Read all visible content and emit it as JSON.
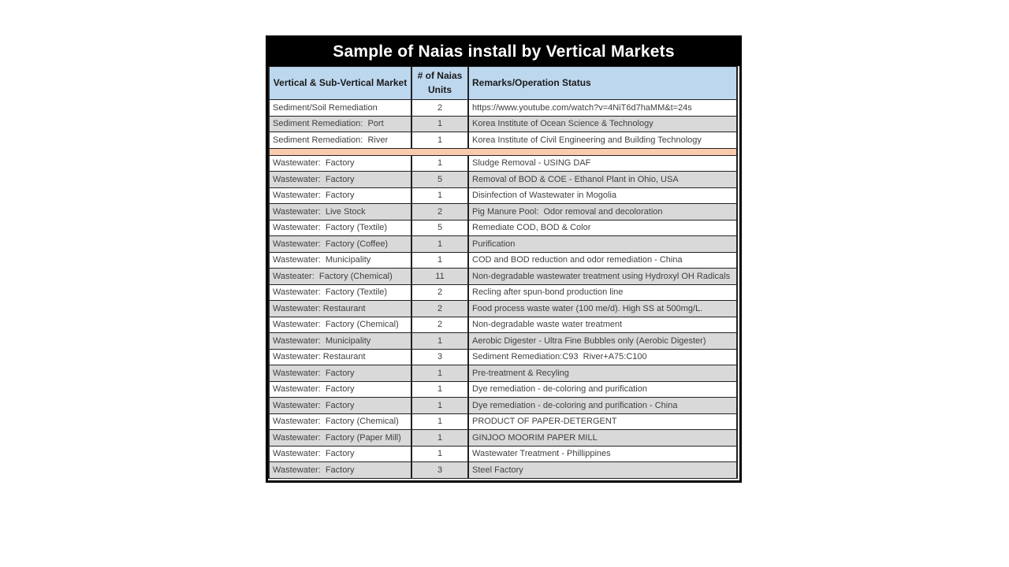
{
  "table": {
    "title": "Sample of Naias install by Vertical Markets",
    "headers": {
      "market": "Vertical & Sub-Vertical Market",
      "units": "# of Naias Units",
      "remarks": "Remarks/Operation Status"
    },
    "colors": {
      "title_bg": "#000000",
      "title_text": "#ffffff",
      "header_bg": "#bdd7ee",
      "row_bg": "#ffffff",
      "row_alt_bg": "#d9d9d9",
      "separator_bg": "#f8cbad",
      "border": "#212121",
      "text": "#3f3f3f"
    },
    "rows": [
      {
        "market": "Sediment/Soil Remediation",
        "units": "2",
        "remarks": "https://www.youtube.com/watch?v=4NiT6d7haMM&t=24s",
        "shade": "plain"
      },
      {
        "market": "Sediment Remediation:  Port",
        "units": "1",
        "remarks": "Korea Institute of Ocean Science & Technology",
        "shade": "alt"
      },
      {
        "market": "Sediment Remediation:  River",
        "units": "1",
        "remarks": "Korea Institute of Civil Engineering and Building Technology",
        "shade": "plain"
      },
      {
        "separator": true
      },
      {
        "market": "Wastewater:  Factory",
        "units": "1",
        "remarks": "Sludge Removal - USING DAF",
        "shade": "plain"
      },
      {
        "market": "Wastewater:  Factory",
        "units": "5",
        "remarks": "Removal of BOD & COE - Ethanol Plant in Ohio, USA",
        "shade": "alt"
      },
      {
        "market": "Wastewater:  Factory",
        "units": "1",
        "remarks": "Disinfection of Wastewater in Mogolia",
        "shade": "plain"
      },
      {
        "market": "Wastewater:  Live Stock",
        "units": "2",
        "remarks": "Pig Manure Pool:  Odor removal and decoloration",
        "shade": "alt"
      },
      {
        "market": "Wastewater:  Factory (Textile)",
        "units": "5",
        "remarks": "Remediate COD, BOD & Color",
        "shade": "plain"
      },
      {
        "market": "Wastewater:  Factory (Coffee)",
        "units": "1",
        "remarks": "Purification",
        "shade": "alt"
      },
      {
        "market": "Wastewater:  Municipality",
        "units": "1",
        "remarks": "COD and BOD reduction and odor remediation - China",
        "shade": "plain"
      },
      {
        "market": "Wasteater:  Factory (Chemical)",
        "units": "11",
        "remarks": "Non-degradable wastewater treatment using Hydroxyl OH Radicals",
        "shade": "alt"
      },
      {
        "market": "Wastewater:  Factory (Textile)",
        "units": "2",
        "remarks": "Recling after spun-bond production line",
        "shade": "plain"
      },
      {
        "market": "Wastewater: Restaurant",
        "units": "2",
        "remarks": "Food process waste water (100 me/d). High SS at 500mg/L.",
        "shade": "alt"
      },
      {
        "market": "Wastewater:  Factory (Chemical)",
        "units": "2",
        "remarks": "Non-degradable waste water treatment",
        "shade": "plain"
      },
      {
        "market": "Wastewater:  Municipality",
        "units": "1",
        "remarks": "Aerobic Digester - Ultra Fine Bubbles only (Aerobic Digester)",
        "shade": "alt"
      },
      {
        "market": "Wastewater: Restaurant",
        "units": "3",
        "remarks": "Sediment Remediation:C93  River+A75:C100",
        "shade": "plain"
      },
      {
        "market": "Wastewater:  Factory",
        "units": "1",
        "remarks": "Pre-treatment & Recyling",
        "shade": "alt"
      },
      {
        "market": "Wastewater:  Factory",
        "units": "1",
        "remarks": "Dye remediation - de-coloring and purification",
        "shade": "plain"
      },
      {
        "market": "Wastewater:  Factory",
        "units": "1",
        "remarks": "Dye remediation - de-coloring and purification - China",
        "shade": "alt"
      },
      {
        "market": "Wastewater:  Factory (Chemical)",
        "units": "1",
        "remarks": "PRODUCT OF PAPER-DETERGENT",
        "shade": "plain"
      },
      {
        "market": "Wastewater:  Factory (Paper Mill)",
        "units": "1",
        "remarks": "GINJOO MOORIM PAPER MILL",
        "shade": "alt"
      },
      {
        "market": "Wastewater:  Factory",
        "units": "1",
        "remarks": "Wastewater Treatment - Phillippines",
        "shade": "plain"
      },
      {
        "market": "Wastewater:  Factory",
        "units": "3",
        "remarks": "Steel Factory",
        "shade": "alt"
      }
    ]
  }
}
